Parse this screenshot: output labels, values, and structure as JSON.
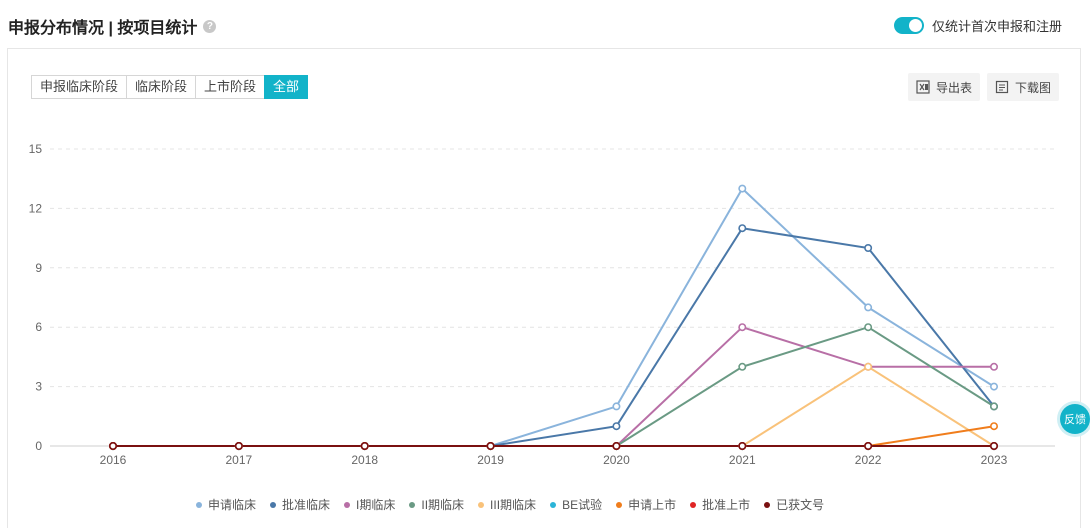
{
  "header": {
    "title": "申报分布情况 | 按项目统计",
    "help_icon": "?",
    "toggle_label": "仅统计首次申报和注册",
    "toggle_on": true
  },
  "tabs": [
    {
      "label": "申报临床阶段",
      "active": false
    },
    {
      "label": "临床阶段",
      "active": false
    },
    {
      "label": "上市阶段",
      "active": false
    },
    {
      "label": "全部",
      "active": true
    }
  ],
  "tools": {
    "export_label": "导出表",
    "download_label": "下载图"
  },
  "feedback_label": "反馈",
  "colors": {
    "accent": "#12b3c9",
    "grid": "#e4e4e4"
  },
  "chart_data": {
    "type": "line",
    "x": [
      "2016",
      "2017",
      "2018",
      "2019",
      "2020",
      "2021",
      "2022",
      "2023"
    ],
    "ylim": [
      0,
      15
    ],
    "yticks": [
      0,
      3,
      6,
      9,
      12,
      15
    ],
    "grid": true,
    "legend_position": "bottom",
    "series": [
      {
        "name": "申请临床",
        "color": "#8ab4dc",
        "values": [
          0,
          0,
          0,
          0,
          2,
          13,
          7,
          3
        ]
      },
      {
        "name": "批准临床",
        "color": "#4a78a8",
        "values": [
          0,
          0,
          0,
          0,
          1,
          11,
          10,
          2
        ]
      },
      {
        "name": "I期临床",
        "color": "#b86fa6",
        "values": [
          0,
          0,
          0,
          0,
          0,
          6,
          4,
          4
        ]
      },
      {
        "name": "II期临床",
        "color": "#6a9a84",
        "values": [
          0,
          0,
          0,
          0,
          0,
          4,
          6,
          2
        ]
      },
      {
        "name": "III期临床",
        "color": "#f9c27a",
        "values": [
          0,
          0,
          0,
          0,
          0,
          0,
          4,
          0
        ]
      },
      {
        "name": "BE试验",
        "color": "#2bb4d8",
        "values": [
          0,
          0,
          0,
          0,
          0,
          0,
          0,
          0
        ]
      },
      {
        "name": "申请上市",
        "color": "#f07d1c",
        "values": [
          0,
          0,
          0,
          0,
          0,
          0,
          0,
          1
        ]
      },
      {
        "name": "批准上市",
        "color": "#e02424",
        "values": [
          0,
          0,
          0,
          0,
          0,
          0,
          0,
          0
        ]
      },
      {
        "name": "已获文号",
        "color": "#7a1010",
        "values": [
          0,
          0,
          0,
          0,
          0,
          0,
          0,
          0
        ]
      }
    ]
  }
}
